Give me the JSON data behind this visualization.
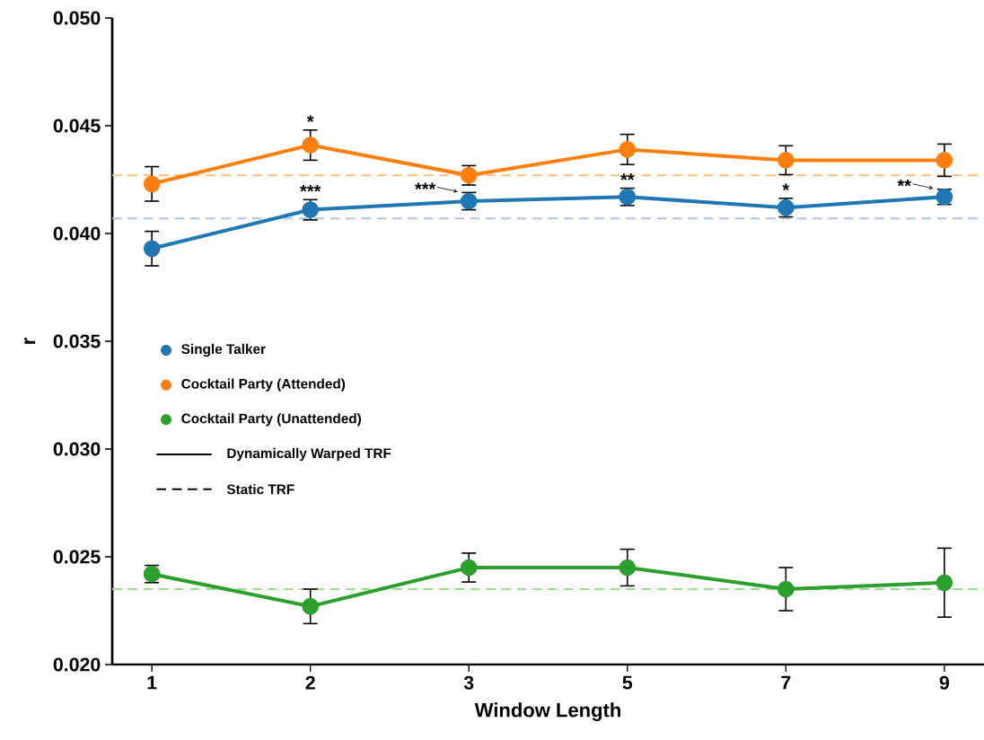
{
  "chart_data": {
    "type": "line",
    "xlabel": "Window Length",
    "ylabel": "r",
    "categories": [
      "1",
      "2",
      "3",
      "5",
      "7",
      "9"
    ],
    "series": [
      {
        "name": "Single Talker",
        "color": "#1f77b4",
        "values": [
          0.0393,
          0.0411,
          0.0415,
          0.0417,
          0.0412,
          0.0417
        ],
        "errors": [
          0.0008,
          0.00047,
          0.0004,
          0.0004,
          0.00043,
          0.00035
        ]
      },
      {
        "name": "Cocktail Party (Attended)",
        "color": "#ff7f0e",
        "values": [
          0.0423,
          0.0441,
          0.0427,
          0.0439,
          0.0434,
          0.0434
        ],
        "errors": [
          0.0008,
          0.0007,
          0.00045,
          0.0007,
          0.00067,
          0.00075
        ]
      },
      {
        "name": "Cocktail Party (Unattended)",
        "color": "#2ca02c",
        "values": [
          0.0242,
          0.0227,
          0.0245,
          0.0245,
          0.0235,
          0.0238
        ],
        "errors": [
          0.0004,
          0.0008,
          0.00067,
          0.00085,
          0.001,
          0.0016
        ]
      }
    ],
    "ref_lines": [
      {
        "axis": "y",
        "value": 0.0407,
        "color": "#aec7e8",
        "line_style": "dashed"
      },
      {
        "axis": "y",
        "value": 0.0427,
        "color": "#ffbb78",
        "line_style": "dashed"
      },
      {
        "axis": "y",
        "value": 0.0235,
        "color": "#98df8a",
        "line_style": "dashed"
      }
    ],
    "annotations": [
      {
        "text": "*",
        "x": "2",
        "y": 0.0441
      },
      {
        "text": "***",
        "x": "2",
        "y": 0.0411
      },
      {
        "text": "***",
        "x": "3",
        "y": 0.0415
      },
      {
        "text": "**",
        "x": "5",
        "y": 0.0417
      },
      {
        "text": "*",
        "x": "7",
        "y": 0.0412
      },
      {
        "text": "**",
        "x": "9",
        "y": 0.0417
      },
      "Dynamically Warped TRF",
      "Static TRF"
    ],
    "ylim": [
      0.02,
      0.05
    ],
    "yticks": [
      {
        "value": 0.02,
        "label": "0.020"
      },
      {
        "value": 0.025,
        "label": "0.025"
      },
      {
        "value": 0.03,
        "label": "0.030"
      },
      {
        "value": 0.035,
        "label": "0.035"
      },
      {
        "value": 0.04,
        "label": "0.040"
      },
      {
        "value": 0.045,
        "label": "0.045"
      },
      {
        "value": 0.05,
        "label": "0.050"
      }
    ],
    "legend": "left",
    "marker": "circle",
    "line_style": "solid",
    "grid": false
  }
}
